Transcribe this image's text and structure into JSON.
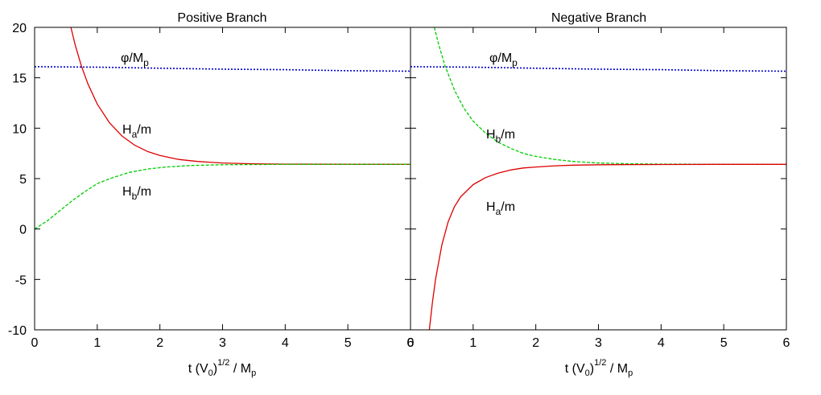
{
  "chart_data": [
    {
      "type": "line",
      "title": "Positive Branch",
      "xlabel": "t (V0)1/2 / Mp",
      "xlabel_parts": {
        "t": "t (V",
        "sub0": "0",
        "paren": ")",
        "sup": "1/2",
        "mid": " / M",
        "subp": "p"
      },
      "xlim": [
        0,
        6
      ],
      "ylim": [
        -10,
        20
      ],
      "x_ticks": [
        0,
        1,
        2,
        3,
        4,
        5,
        6
      ],
      "y_ticks": [
        -10,
        -5,
        0,
        5,
        10,
        15,
        20
      ],
      "grid": false,
      "series": [
        {
          "name": "φ/Mp",
          "name_parts": {
            "main": "φ/M",
            "sub": "p"
          },
          "color": "#0000cc",
          "style": "dotted",
          "x": [
            0,
            1,
            2,
            3,
            4,
            5,
            6
          ],
          "y": [
            16.1,
            16.05,
            15.95,
            15.85,
            15.8,
            15.7,
            15.65
          ]
        },
        {
          "name": "Ha/m",
          "name_parts": {
            "main": "H",
            "sub": "a",
            "tail": "/m"
          },
          "color": "#dd0000",
          "style": "solid",
          "x": [
            0.58,
            0.65,
            0.75,
            0.85,
            1.0,
            1.2,
            1.4,
            1.6,
            1.8,
            2.0,
            2.3,
            2.6,
            3.0,
            3.5,
            4.0,
            5.0,
            6.0
          ],
          "y": [
            20.0,
            18.2,
            16.1,
            14.4,
            12.4,
            10.5,
            9.2,
            8.3,
            7.7,
            7.3,
            6.9,
            6.7,
            6.55,
            6.47,
            6.44,
            6.42,
            6.41
          ]
        },
        {
          "name": "Hb/m",
          "name_parts": {
            "main": "H",
            "sub": "b",
            "tail": "/m"
          },
          "color": "#00cc00",
          "style": "dashed",
          "x": [
            0,
            0.2,
            0.4,
            0.6,
            0.8,
            1.0,
            1.2,
            1.5,
            1.8,
            2.1,
            2.5,
            3.0,
            3.5,
            4.0,
            5.0,
            6.0
          ],
          "y": [
            0.0,
            0.8,
            1.8,
            2.8,
            3.7,
            4.5,
            5.0,
            5.6,
            5.95,
            6.15,
            6.3,
            6.37,
            6.4,
            6.41,
            6.41,
            6.41
          ]
        }
      ]
    },
    {
      "type": "line",
      "title": "Negative Branch",
      "xlabel": "t (V0)1/2 / Mp",
      "xlabel_parts": {
        "t": "t (V",
        "sub0": "0",
        "paren": ")",
        "sup": "1/2",
        "mid": " / M",
        "subp": "p"
      },
      "xlim": [
        0,
        6
      ],
      "ylim": [
        -10,
        20
      ],
      "x_ticks": [
        0,
        1,
        2,
        3,
        4,
        5,
        6
      ],
      "y_ticks": [
        -10,
        -5,
        0,
        5,
        10,
        15,
        20
      ],
      "grid": false,
      "series": [
        {
          "name": "φ/Mp",
          "name_parts": {
            "main": "φ/M",
            "sub": "p"
          },
          "color": "#0000cc",
          "style": "dotted",
          "x": [
            0,
            1,
            2,
            3,
            4,
            5,
            6
          ],
          "y": [
            16.1,
            16.05,
            15.95,
            15.85,
            15.8,
            15.7,
            15.65
          ]
        },
        {
          "name": "Hb/m",
          "name_parts": {
            "main": "H",
            "sub": "b",
            "tail": "/m"
          },
          "color": "#00cc00",
          "style": "dashed",
          "x": [
            0.38,
            0.45,
            0.55,
            0.7,
            0.85,
            1.0,
            1.2,
            1.4,
            1.6,
            1.8,
            2.0,
            2.3,
            2.6,
            3.0,
            3.5,
            4.0,
            5.0,
            6.0
          ],
          "y": [
            20.0,
            18.3,
            16.2,
            13.8,
            12.0,
            10.7,
            9.5,
            8.6,
            8.0,
            7.5,
            7.2,
            6.9,
            6.7,
            6.55,
            6.47,
            6.44,
            6.42,
            6.41
          ]
        },
        {
          "name": "Ha/m",
          "name_parts": {
            "main": "H",
            "sub": "a",
            "tail": "/m"
          },
          "color": "#dd0000",
          "style": "solid",
          "x": [
            0.3,
            0.35,
            0.4,
            0.5,
            0.6,
            0.7,
            0.8,
            1.0,
            1.2,
            1.4,
            1.6,
            1.8,
            2.0,
            2.3,
            2.6,
            3.0,
            3.5,
            4.0,
            5.0,
            6.0
          ],
          "y": [
            -10.0,
            -7.3,
            -5.0,
            -1.6,
            0.7,
            2.2,
            3.2,
            4.4,
            5.1,
            5.55,
            5.85,
            6.05,
            6.15,
            6.27,
            6.33,
            6.37,
            6.39,
            6.4,
            6.41,
            6.41
          ]
        }
      ]
    }
  ]
}
